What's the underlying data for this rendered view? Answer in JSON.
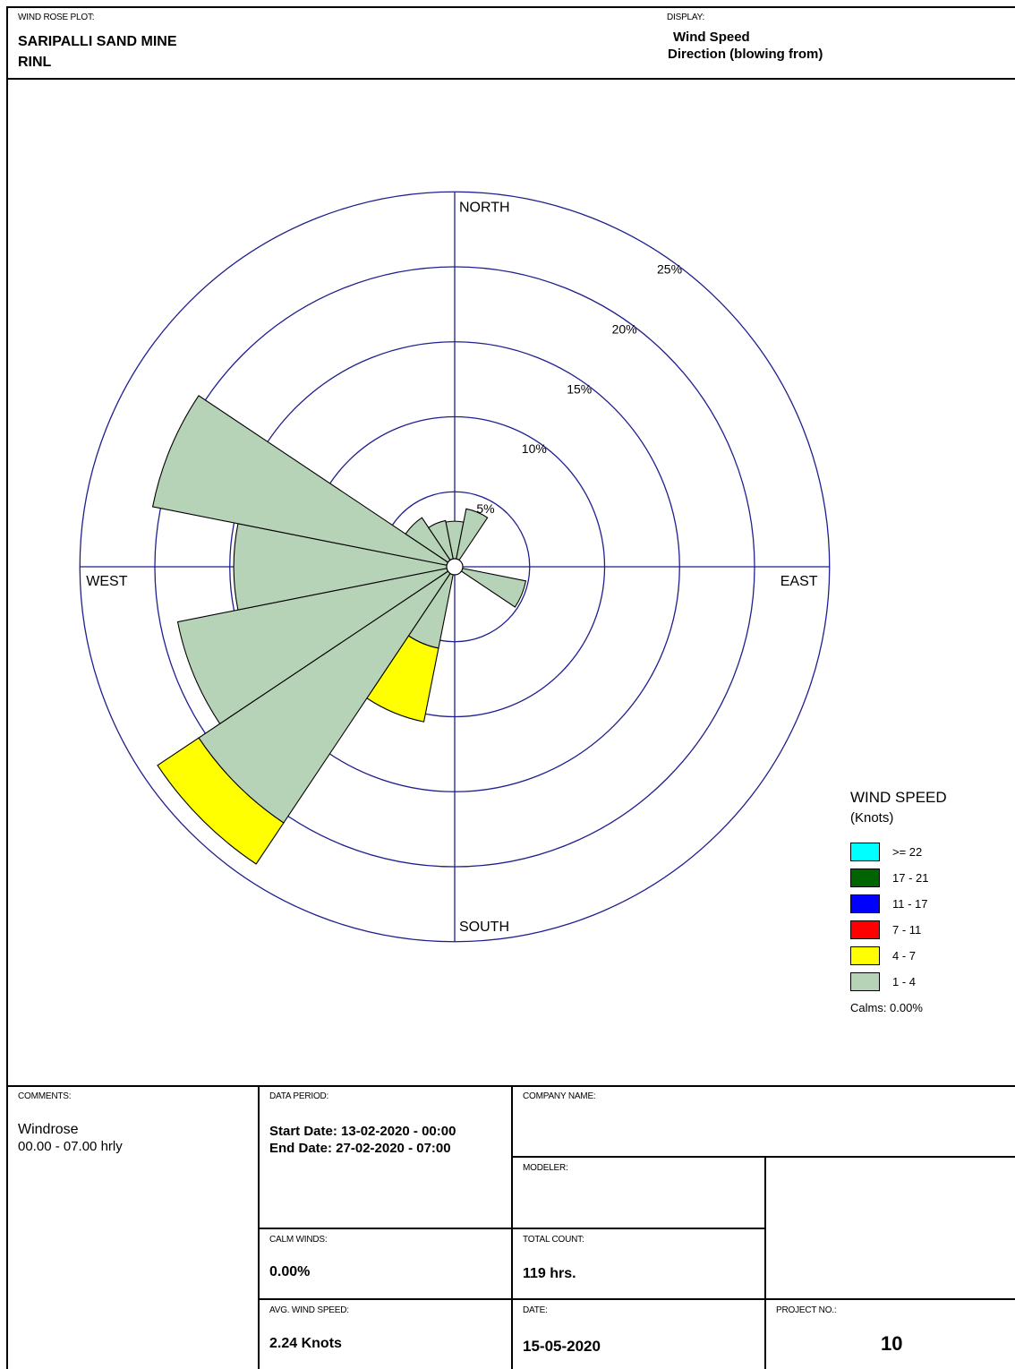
{
  "header": {
    "plot_caption": "WIND ROSE PLOT:",
    "title_line1": "SARIPALLI SAND MINE",
    "title_line2": "RINL",
    "display_caption": "DISPLAY:",
    "display_line1": "Wind Speed",
    "display_line2": "Direction (blowing from)"
  },
  "chart_data": {
    "type": "windrose",
    "directions": [
      "N",
      "NNE",
      "NE",
      "ENE",
      "E",
      "ESE",
      "SE",
      "SSE",
      "S",
      "SSW",
      "SW",
      "WSW",
      "W",
      "WNW",
      "NW",
      "NNW"
    ],
    "speed_bins": [
      "1 - 4",
      "4 - 7",
      "7 - 11",
      "11 - 17",
      "17 - 21",
      ">= 22"
    ],
    "frequencies_percent": [
      {
        "direction": "N",
        "1 - 4": 2.5,
        "4 - 7": 0
      },
      {
        "direction": "NNE",
        "1 - 4": 3.4,
        "4 - 7": 0
      },
      {
        "direction": "NE",
        "1 - 4": 0,
        "4 - 7": 0
      },
      {
        "direction": "ENE",
        "1 - 4": 0,
        "4 - 7": 0
      },
      {
        "direction": "E",
        "1 - 4": 0,
        "4 - 7": 0
      },
      {
        "direction": "ESE",
        "1 - 4": 4.3,
        "4 - 7": 0
      },
      {
        "direction": "SE",
        "1 - 4": 0,
        "4 - 7": 0
      },
      {
        "direction": "SSE",
        "1 - 4": 0,
        "4 - 7": 0
      },
      {
        "direction": "S",
        "1 - 4": 0,
        "4 - 7": 0
      },
      {
        "direction": "SSW",
        "1 - 4": 5.0,
        "4 - 7": 5.0
      },
      {
        "direction": "SW",
        "1 - 4": 20.0,
        "4 - 7": 3.3
      },
      {
        "direction": "WSW",
        "1 - 4": 18.3,
        "4 - 7": 0
      },
      {
        "direction": "W",
        "1 - 4": 14.2,
        "4 - 7": 0
      },
      {
        "direction": "WNW",
        "1 - 4": 20.0,
        "4 - 7": 0
      },
      {
        "direction": "NW",
        "1 - 4": 3.4,
        "4 - 7": 0
      },
      {
        "direction": "NNW",
        "1 - 4": 2.6,
        "4 - 7": 0
      }
    ],
    "rings_percent": [
      5,
      10,
      15,
      20,
      25
    ],
    "ring_labels": [
      "5%",
      "10%",
      "15%",
      "20%",
      "25%"
    ],
    "axis_labels": {
      "north": "NORTH",
      "south": "SOUTH",
      "east": "EAST",
      "west": "WEST"
    },
    "colors": {
      "grid": "#1f1f8f",
      "1 - 4": "#b7d3b7",
      "4 - 7": "#ffff00",
      "7 - 11": "#ff0000",
      "11 - 17": "#0000ff",
      "17 - 21": "#008000",
      ">= 22": "#00ffff"
    },
    "legend": {
      "title_line1": "WIND SPEED",
      "title_line2": "(Knots)",
      "entries": [
        {
          "label": ">= 22",
          "color": "#00ffff"
        },
        {
          "label": "17 - 21",
          "color": "#006400"
        },
        {
          "label": "11 - 17",
          "color": "#0000ff"
        },
        {
          "label": "7 - 11",
          "color": "#ff0000"
        },
        {
          "label": "4 - 7",
          "color": "#ffff00"
        },
        {
          "label": "1 - 4",
          "color": "#b7d3b7"
        }
      ],
      "calms": "Calms: 0.00%"
    }
  },
  "footer": {
    "comments_caption": "COMMENTS:",
    "comments_line1": "Windrose",
    "comments_line2": "00.00 - 07.00 hrly",
    "data_period_caption": "DATA PERIOD:",
    "start_date": "Start Date: 13-02-2020 - 00:00",
    "end_date": "End Date: 27-02-2020 - 07:00",
    "company_caption": "COMPANY NAME:",
    "modeler_caption": "MODELER:",
    "calm_winds_caption": "CALM WINDS:",
    "calm_winds_value": "0.00%",
    "total_count_caption": "TOTAL COUNT:",
    "total_count_value": "119 hrs.",
    "avg_speed_caption": "AVG. WIND SPEED:",
    "avg_speed_value": "2.24 Knots",
    "date_caption": "DATE:",
    "date_value": "15-05-2020",
    "project_caption": "PROJECT NO.:",
    "project_value": "10"
  }
}
